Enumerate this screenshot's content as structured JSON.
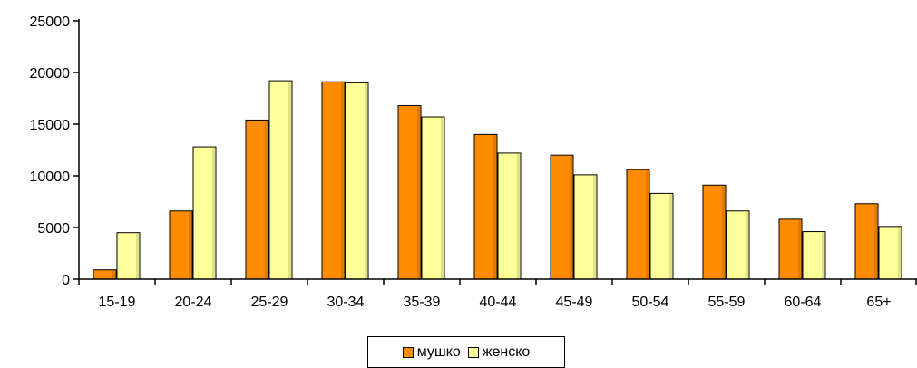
{
  "chart_data": {
    "type": "bar",
    "title": "",
    "xlabel": "",
    "ylabel": "",
    "categories": [
      "15-19",
      "20-24",
      "25-29",
      "30-34",
      "35-39",
      "40-44",
      "45-49",
      "50-54",
      "55-59",
      "60-64",
      "65+"
    ],
    "series": [
      {
        "name": "мушко",
        "color": "#ff8c00",
        "values": [
          900,
          6600,
          15400,
          19100,
          16800,
          14000,
          12000,
          10600,
          9100,
          5800,
          7300
        ]
      },
      {
        "name": "женско",
        "color": "#ffff99",
        "values": [
          4500,
          12800,
          19200,
          19000,
          15700,
          12200,
          10100,
          8300,
          6600,
          4600,
          5100
        ]
      }
    ],
    "ylim": [
      0,
      25000
    ],
    "yticks": [
      0,
      5000,
      10000,
      15000,
      20000,
      25000
    ],
    "grid": false,
    "legend": "bottom-center"
  }
}
